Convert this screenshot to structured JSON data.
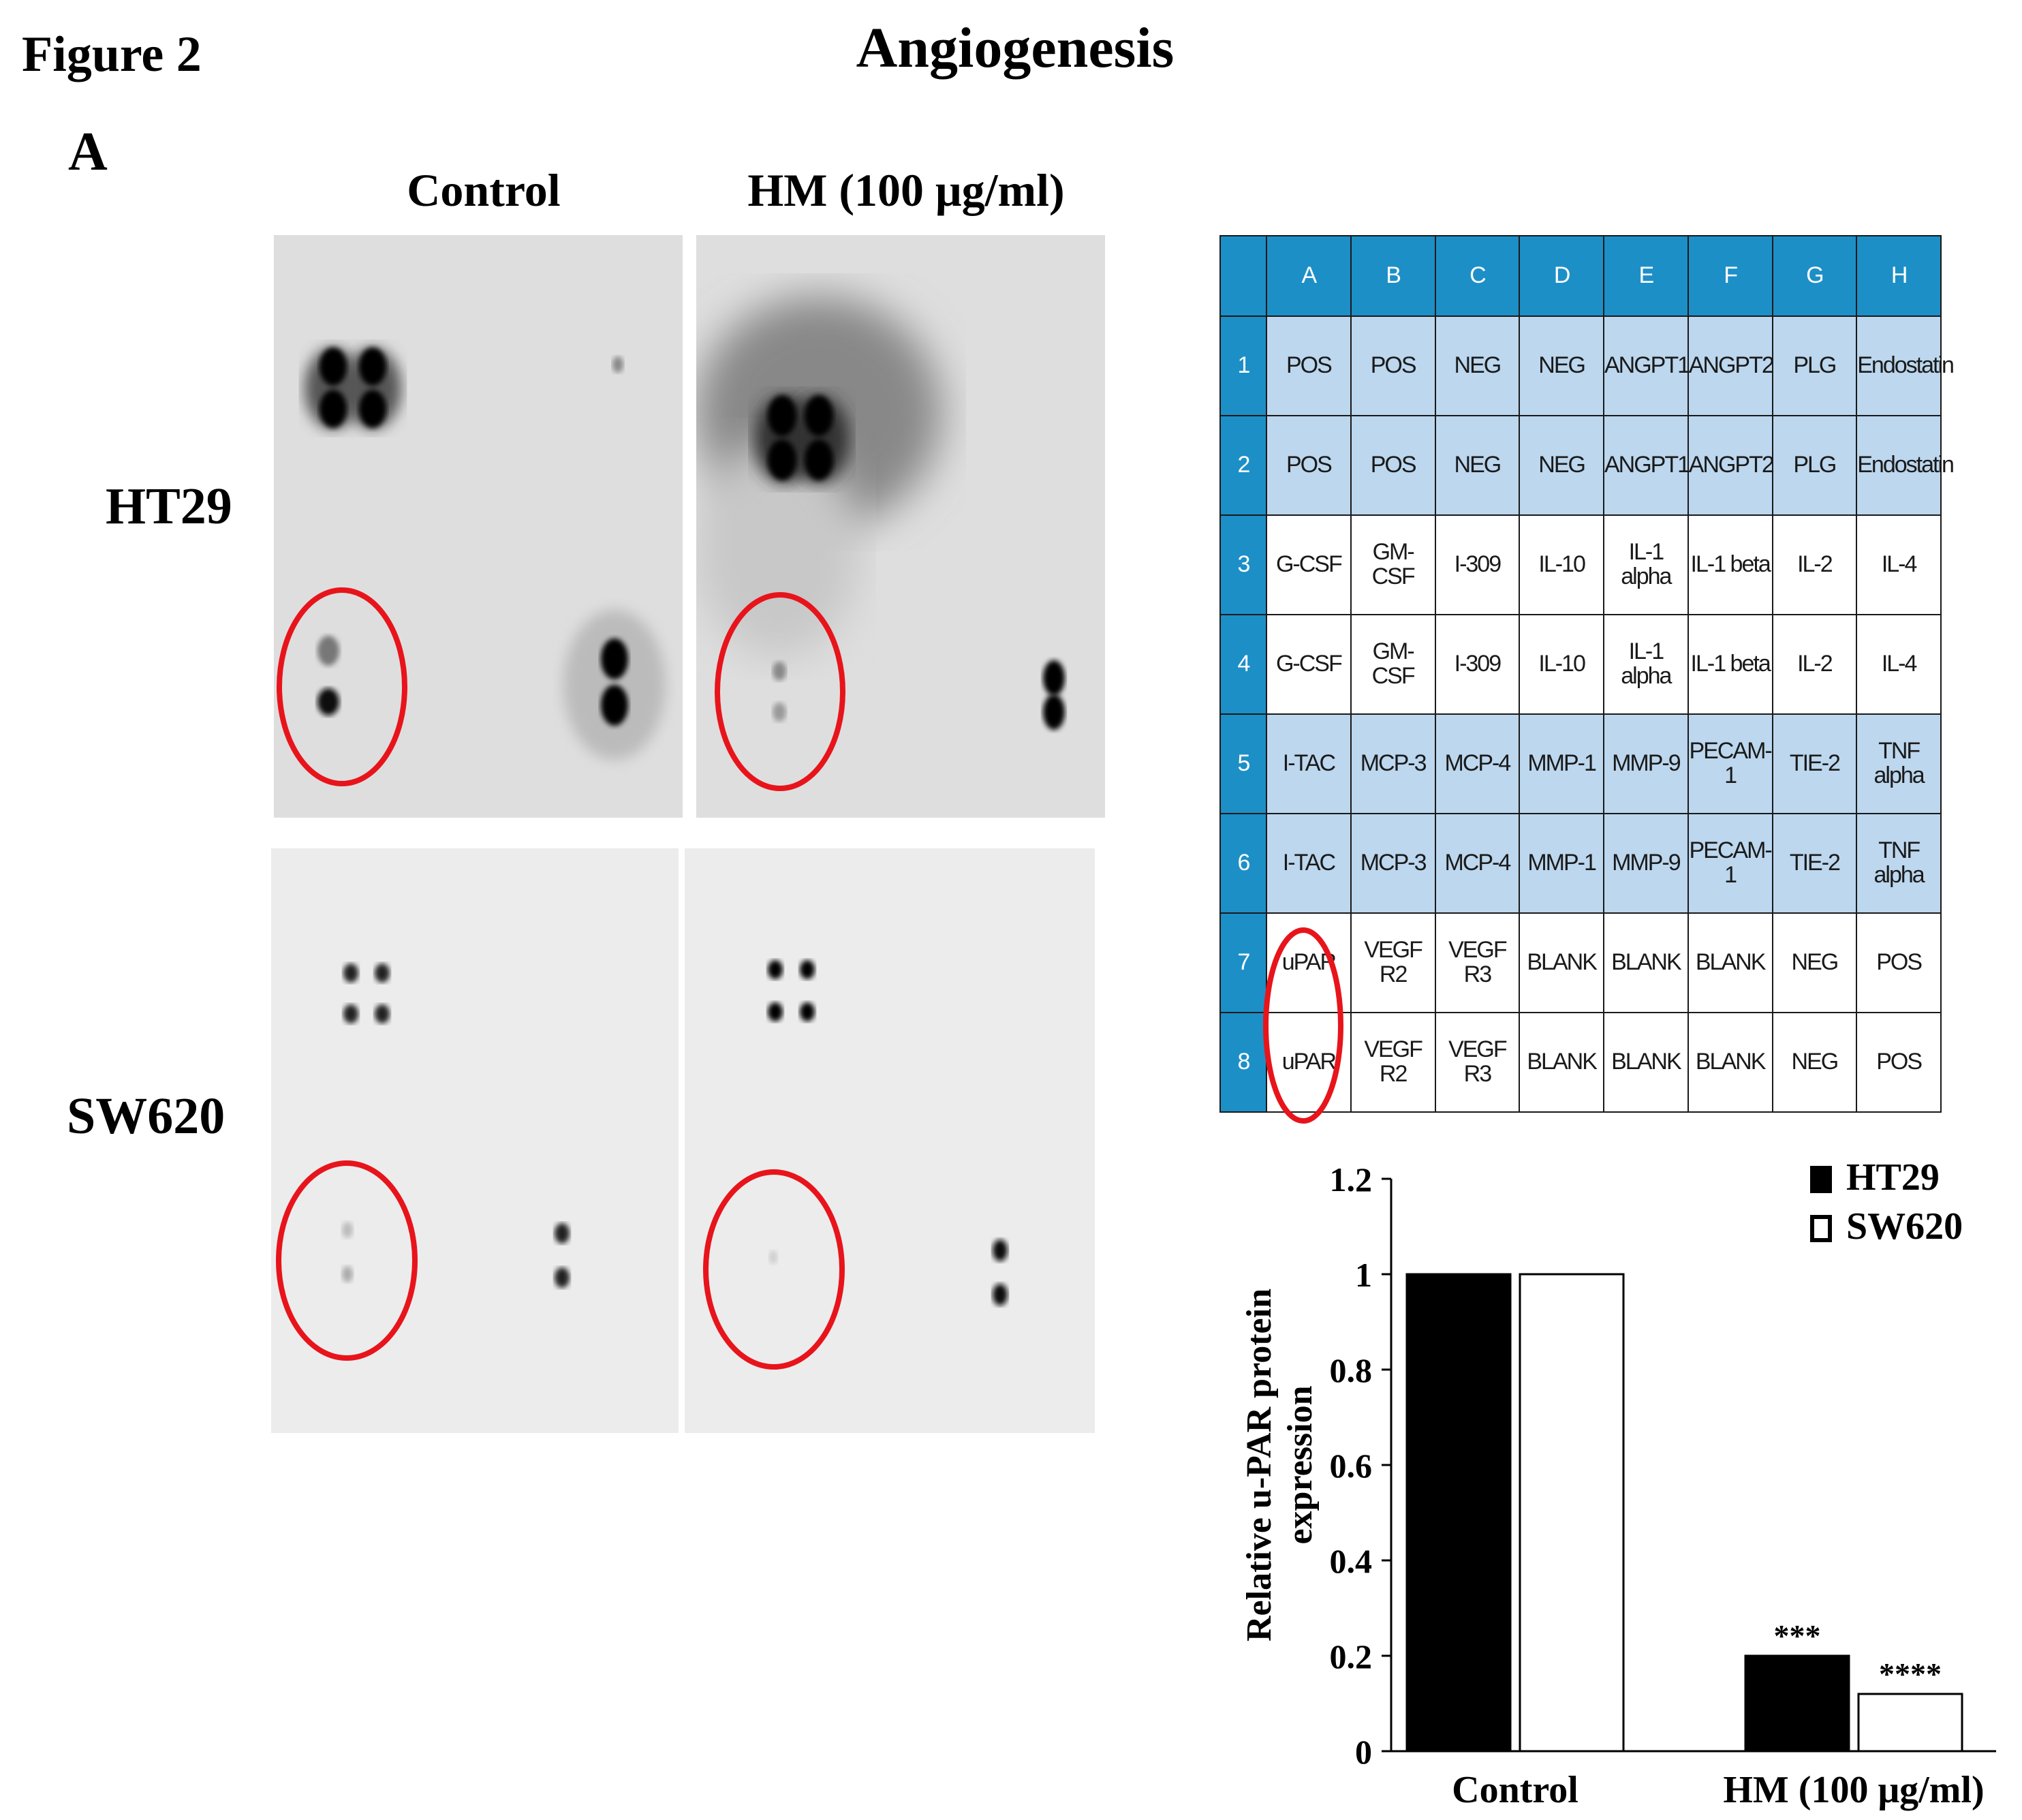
{
  "figure_label": "Figure 2",
  "title": "Angiogenesis",
  "panel_label": "A",
  "columns": [
    "Control",
    "HM (100 μg/ml)"
  ],
  "rows": [
    "HT29",
    "SW620"
  ],
  "highlight_color": "#e8141b",
  "array_map": {
    "header_color": "#1d8fc7",
    "highlight_color": "#bcd7ee",
    "col_headers": [
      "A",
      "B",
      "C",
      "D",
      "E",
      "F",
      "G",
      "H"
    ],
    "rows": [
      {
        "id": "1",
        "cells": [
          "POS",
          "POS",
          "NEG",
          "NEG",
          "ANGPT1",
          "ANGPT2",
          "PLG",
          "Endostatin"
        ]
      },
      {
        "id": "2",
        "cells": [
          "POS",
          "POS",
          "NEG",
          "NEG",
          "ANGPT1",
          "ANGPT2",
          "PLG",
          "Endostatin"
        ]
      },
      {
        "id": "3",
        "cells": [
          "G-CSF",
          "GM-CSF",
          "I-309",
          "IL-10",
          "IL-1 alpha",
          "IL-1 beta",
          "IL-2",
          "IL-4"
        ]
      },
      {
        "id": "4",
        "cells": [
          "G-CSF",
          "GM-CSF",
          "I-309",
          "IL-10",
          "IL-1 alpha",
          "IL-1 beta",
          "IL-2",
          "IL-4"
        ]
      },
      {
        "id": "5",
        "cells": [
          "I-TAC",
          "MCP-3",
          "MCP-4",
          "MMP-1",
          "MMP-9",
          "PECAM-1",
          "TIE-2",
          "TNF alpha"
        ]
      },
      {
        "id": "6",
        "cells": [
          "I-TAC",
          "MCP-3",
          "MCP-4",
          "MMP-1",
          "MMP-9",
          "PECAM-1",
          "TIE-2",
          "TNF alpha"
        ]
      },
      {
        "id": "7",
        "cells": [
          "uPAR",
          "VEGF R2",
          "VEGF R3",
          "BLANK",
          "BLANK",
          "BLANK",
          "NEG",
          "POS"
        ]
      },
      {
        "id": "8",
        "cells": [
          "uPAR",
          "VEGF R2",
          "VEGF R3",
          "BLANK",
          "BLANK",
          "BLANK",
          "NEG",
          "POS"
        ]
      }
    ]
  },
  "chart_data": {
    "type": "bar",
    "categories": [
      "Control",
      "HM (100 μg/ml)"
    ],
    "series": [
      {
        "name": "HT29",
        "values": [
          1,
          0.2
        ],
        "color": "#000000",
        "annotations": [
          "",
          "***"
        ]
      },
      {
        "name": "SW620",
        "values": [
          1,
          0.12
        ],
        "color": "#ffffff",
        "annotations": [
          "",
          "****"
        ]
      }
    ],
    "ylabel": "Relative u-PAR protein expression",
    "ylim": [
      0,
      1.2
    ],
    "yticks": [
      "0",
      "0.2",
      "0.4",
      "0.6",
      "0.8",
      "1",
      "1.2"
    ],
    "legend_position": "top-right",
    "grid": false
  }
}
